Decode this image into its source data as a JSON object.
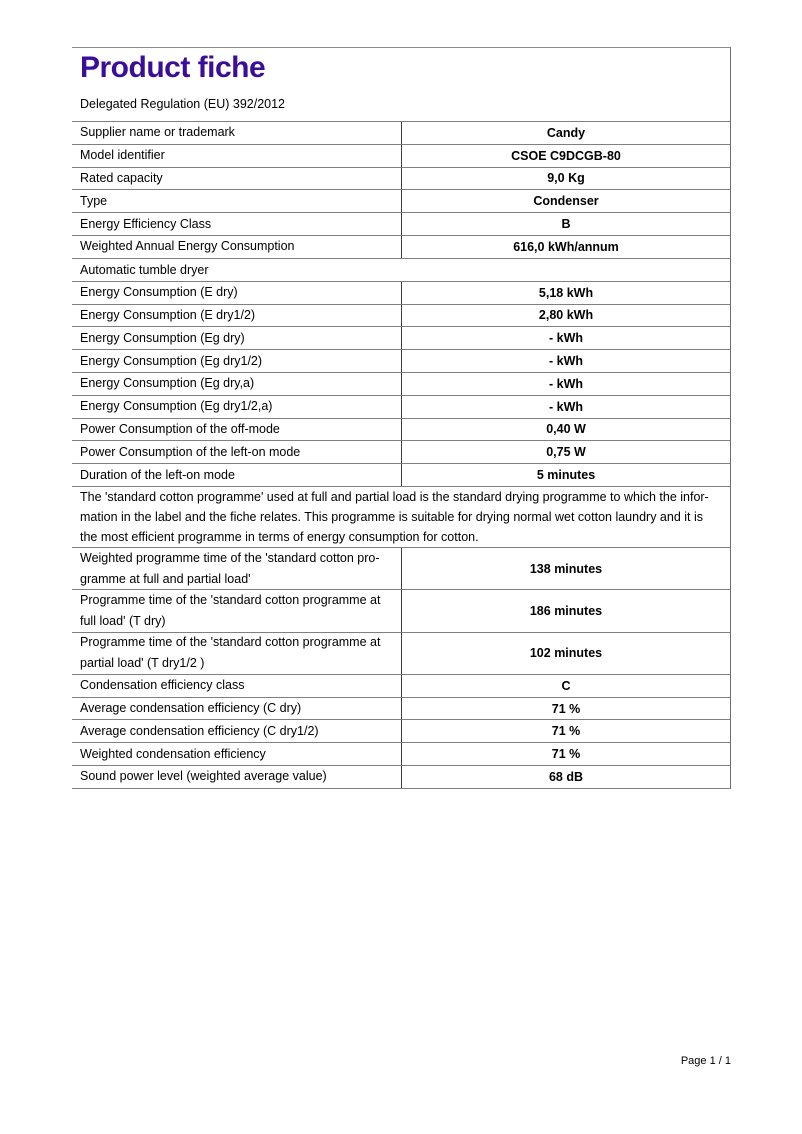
{
  "page": {
    "title": "Product fiche",
    "subtitle": "Delegated Regulation (EU) 392/2012",
    "footer": "Page 1 / 1",
    "accent_color": "#3a0e99"
  },
  "table": {
    "rows": [
      {
        "type": "data",
        "label": "Supplier name or trademark",
        "value": "Candy"
      },
      {
        "type": "data",
        "label": "Model identifier",
        "value": "CSOE C9DCGB-80"
      },
      {
        "type": "data",
        "label": "Rated capacity",
        "value": "9,0 Kg"
      },
      {
        "type": "data",
        "label": "Type",
        "value": "Condenser"
      },
      {
        "type": "data",
        "label": "Energy Efficiency Class",
        "value": "B"
      },
      {
        "type": "data",
        "label": "Weighted Annual Energy Consumption",
        "value": "616,0 kWh/annum"
      },
      {
        "type": "section",
        "label": "Automatic tumble dryer"
      },
      {
        "type": "data",
        "label": "Energy Consumption (E dry)",
        "value": "5,18 kWh"
      },
      {
        "type": "data",
        "label": "Energy Consumption (E dry1/2)",
        "value": "2,80 kWh"
      },
      {
        "type": "data",
        "label": "Energy Consumption (Eg dry)",
        "value": "- kWh"
      },
      {
        "type": "data",
        "label": "Energy Consumption (Eg dry1/2)",
        "value": "- kWh"
      },
      {
        "type": "data",
        "label": "Energy Consumption (Eg dry,a)",
        "value": "- kWh"
      },
      {
        "type": "data",
        "label": "Energy Consumption (Eg dry1/2,a)",
        "value": "- kWh"
      },
      {
        "type": "data",
        "label": "Power Consumption of the off-mode",
        "value": "0,40 W"
      },
      {
        "type": "data",
        "label": "Power Consumption of the left-on mode",
        "value": "0,75 W"
      },
      {
        "type": "data",
        "label": "Duration of the left-on mode",
        "value": "5 minutes"
      },
      {
        "type": "note",
        "label": "The 'standard cotton programme' used at full and partial load is the standard drying programme to which the infor-\nmation in the label and the fiche relates. This programme is suitable for drying normal wet cotton laundry and it is\nthe most efficient programme in terms of energy consumption for cotton."
      },
      {
        "type": "data2",
        "label": "Weighted programme time of the 'standard cotton pro-\ngramme at full and partial load'",
        "value": "138 minutes"
      },
      {
        "type": "data2",
        "label": "Programme time of the 'standard cotton programme at\nfull load' (T dry)",
        "value": "186 minutes"
      },
      {
        "type": "data2",
        "label": "Programme time of the 'standard cotton programme at\npartial load' (T dry1/2 )",
        "value": "102 minutes"
      },
      {
        "type": "data",
        "label": "Condensation efficiency class",
        "value": "C"
      },
      {
        "type": "data",
        "label": "Average condensation efficiency (C dry)",
        "value": "71 %"
      },
      {
        "type": "data",
        "label": "Average condensation efficiency (C dry1/2)",
        "value": "71 %"
      },
      {
        "type": "data",
        "label": "Weighted condensation efficiency",
        "value": "71 %"
      },
      {
        "type": "data",
        "label": "Sound power level (weighted average value)",
        "value": "68 dB"
      }
    ]
  }
}
